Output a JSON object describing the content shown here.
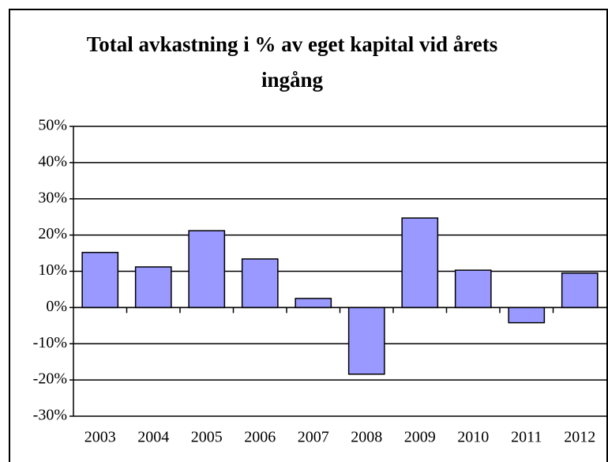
{
  "chart_data": {
    "type": "bar",
    "title": "Total avkastning i % av eget kapital vid årets ingång",
    "categories": [
      "2003",
      "2004",
      "2005",
      "2006",
      "2007",
      "2008",
      "2009",
      "2010",
      "2011",
      "2012"
    ],
    "values": [
      15.2,
      11.2,
      21.2,
      13.4,
      2.5,
      -18.4,
      24.7,
      10.3,
      -4.2,
      9.5
    ],
    "color": "#9999ff",
    "ylim": [
      -30,
      50
    ],
    "yticks": [
      {
        "value": -30,
        "label": "-30%"
      },
      {
        "value": -20,
        "label": "-20%"
      },
      {
        "value": -10,
        "label": "-10%"
      },
      {
        "value": 0,
        "label": "0%"
      },
      {
        "value": 10,
        "label": "10%"
      },
      {
        "value": 20,
        "label": "20%"
      },
      {
        "value": 30,
        "label": "30%"
      },
      {
        "value": 40,
        "label": "40%"
      },
      {
        "value": 50,
        "label": "50%"
      }
    ],
    "grid": true
  }
}
